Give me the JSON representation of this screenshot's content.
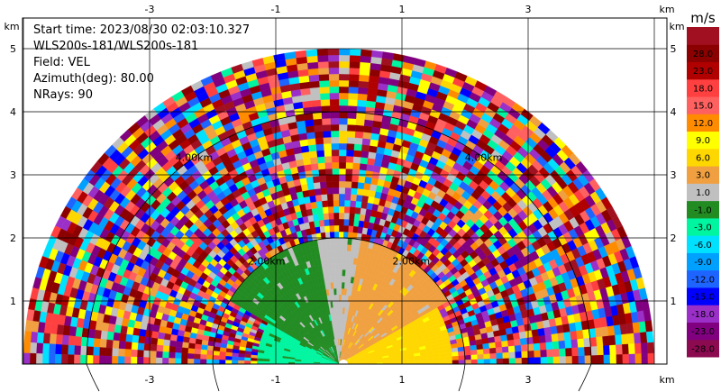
{
  "info": {
    "start_time": "Start time: 2023/08/30 02:03:10.327",
    "site": "WLS200s-181/WLS200s-181",
    "field": "Field: VEL",
    "azimuth": "Azimuth(deg): 80.00",
    "nrays": "NRays: 90"
  },
  "colorbar": {
    "unit": "m/s",
    "levels": [
      -28.0,
      -23.0,
      -18.0,
      -15.0,
      -12.0,
      -9.0,
      -6.0,
      -3.0,
      -1.0,
      1.0,
      3.0,
      6.0,
      9.0,
      12.0,
      15.0,
      18.0,
      23.0,
      28.0
    ],
    "labels": [
      "-28.0",
      "-23.0",
      "-18.0",
      "-15.0",
      "-12.0",
      "-9.0",
      "-6.0",
      "-3.0",
      "-1.0",
      "1.0",
      "3.0",
      "6.0",
      "9.0",
      "12.0",
      "15.0",
      "18.0",
      "23.0",
      "28.0"
    ],
    "colors": [
      "#8b0a50",
      "#800080",
      "#9b30c8",
      "#0000ff",
      "#1e64ff",
      "#00a0ff",
      "#00e0ff",
      "#00f5a0",
      "#228b22",
      "#c0c0c0",
      "#f0a040",
      "#ffd700",
      "#ffff00",
      "#ff8c00",
      "#ff6060",
      "#ff4040",
      "#b00000",
      "#8b0000",
      "#a01020"
    ]
  },
  "chart_data": {
    "type": "ppi",
    "field": "VEL",
    "unit": "m/s",
    "x_ticks": [
      "-3",
      "-1",
      "1",
      "3"
    ],
    "y_ticks": [
      "1",
      "2",
      "3",
      "4",
      "5"
    ],
    "x_unit": "km",
    "y_unit": "km",
    "xlim": [
      -5.0,
      5.0
    ],
    "ylim": [
      0,
      5.45
    ],
    "max_range_km": 5.0,
    "range_rings": [
      {
        "km": 2.0,
        "label": "2.00km"
      },
      {
        "km": 4.0,
        "label": "4.00km"
      }
    ],
    "velocity_regions": [
      {
        "sector_deg": [
          150,
          180
        ],
        "range_km": [
          0,
          1.3
        ],
        "value_ms": -4.0
      },
      {
        "sector_deg": [
          100,
          150
        ],
        "range_km": [
          0,
          2.0
        ],
        "value_ms": -2.0
      },
      {
        "sector_deg": [
          80,
          100
        ],
        "range_km": [
          0,
          2.0
        ],
        "value_ms": 0.0
      },
      {
        "sector_deg": [
          30,
          80
        ],
        "range_km": [
          0,
          2.0
        ],
        "value_ms": 2.0
      },
      {
        "sector_deg": [
          0,
          30
        ],
        "range_km": [
          0,
          1.8
        ],
        "value_ms": 5.0
      },
      {
        "sector_deg": [
          0,
          180
        ],
        "range_km": [
          2.0,
          5.0
        ],
        "value_ms": "noise"
      }
    ],
    "grid": true
  }
}
